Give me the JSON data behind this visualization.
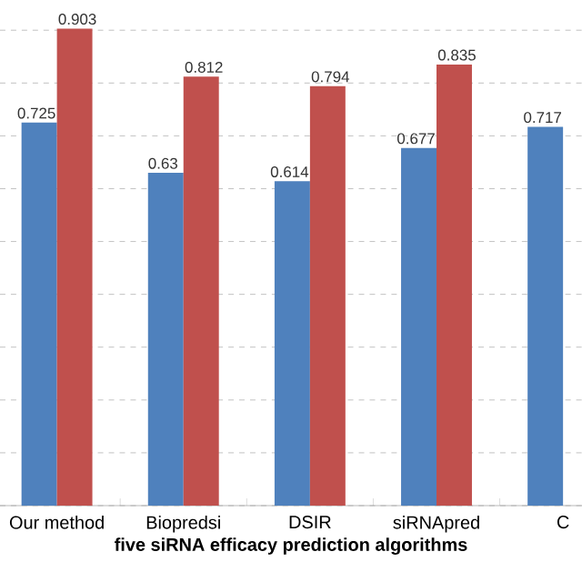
{
  "chart_data": {
    "type": "bar",
    "categories": [
      "Our method",
      "Biopredsi",
      "DSIR",
      "siRNApred",
      "C"
    ],
    "series": [
      {
        "color": "#4f81bd",
        "values": [
          0.725,
          0.63,
          0.614,
          0.677,
          0.717
        ]
      },
      {
        "color": "#c0504d",
        "values": [
          0.903,
          0.812,
          0.794,
          0.835,
          null
        ]
      }
    ],
    "xlabel": "five siRNA efficacy prediction algorithms",
    "tick_labels": "x",
    "grid": "y",
    "data_labels": true
  }
}
